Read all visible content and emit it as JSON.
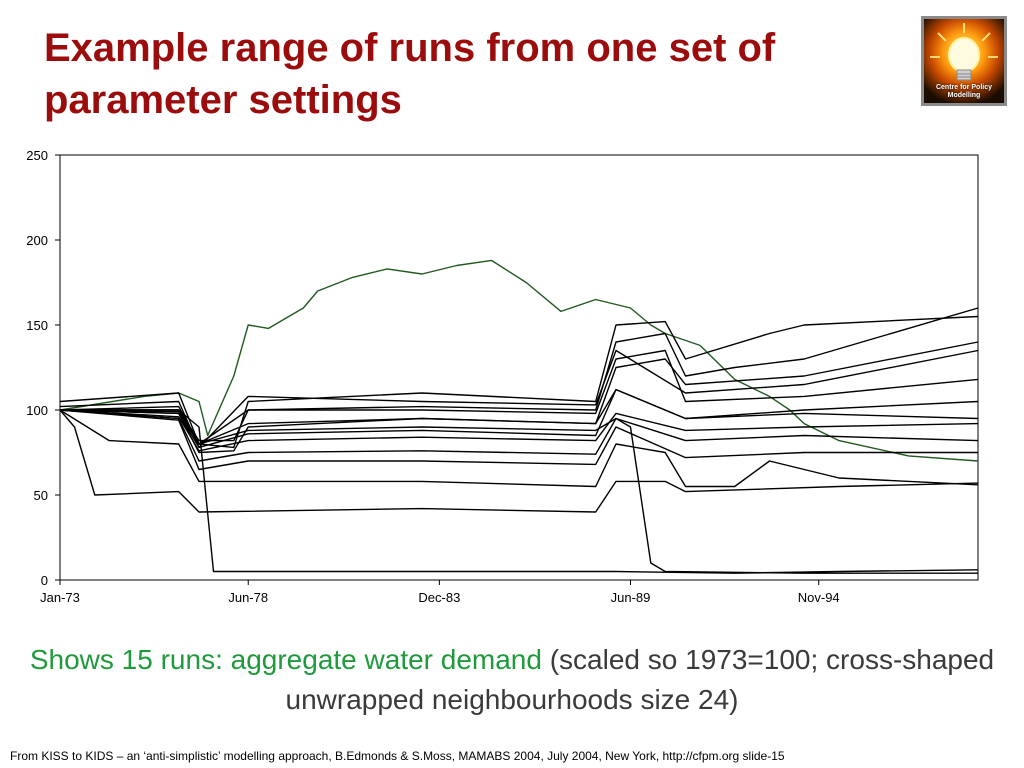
{
  "slide": {
    "title": "Example range of runs from one set of parameter settings",
    "logo_text": "Centre for Policy Modelling",
    "caption_highlight": "Shows 15 runs: aggregate water demand",
    "caption_rest": " (scaled so 1973=100; cross-shaped unwrapped neighbourhoods size 24)",
    "footer": "From KISS to KIDS – an ‘anti-simplistic’ modelling approach, B.Edmonds & S.Moss, MAMABS 2004, July 2004, New York, http://cfpm.org slide-15"
  },
  "colors": {
    "title": "#9b0d0d",
    "caption_highlight": "#1f9a3c",
    "black_series": "#000000",
    "green_series": "#1f5a1f"
  },
  "chart_data": {
    "type": "line",
    "title": "",
    "xlabel": "",
    "ylabel": "",
    "ylim": [
      0,
      250
    ],
    "yticks": [
      0,
      50,
      100,
      150,
      200,
      250
    ],
    "xlim": [
      "1973-01",
      "1999-06"
    ],
    "xticks": [
      "Jan-73",
      "Jun-78",
      "Dec-83",
      "Jun-89",
      "Nov-94"
    ],
    "grid": false,
    "legend": "none",
    "series": [
      {
        "color": "#1f5a1f",
        "points": [
          [
            "1973-01",
            100
          ],
          [
            "1975-06",
            108
          ],
          [
            "1976-06",
            110
          ],
          [
            "1977-01",
            105
          ],
          [
            "1977-04",
            85
          ],
          [
            "1978-01",
            120
          ],
          [
            "1978-06",
            150
          ],
          [
            "1979-01",
            148
          ],
          [
            "1980-01",
            160
          ],
          [
            "1980-06",
            170
          ],
          [
            "1981-06",
            178
          ],
          [
            "1982-06",
            183
          ],
          [
            "1983-06",
            180
          ],
          [
            "1984-06",
            185
          ],
          [
            "1985-06",
            188
          ],
          [
            "1986-06",
            175
          ],
          [
            "1987-06",
            158
          ],
          [
            "1988-06",
            165
          ],
          [
            "1989-06",
            160
          ],
          [
            "1990-01",
            150
          ],
          [
            "1990-06",
            145
          ],
          [
            "1991-06",
            138
          ],
          [
            "1992-06",
            118
          ],
          [
            "1993-06",
            108
          ],
          [
            "1994-01",
            100
          ],
          [
            "1994-06",
            92
          ],
          [
            "1995-06",
            82
          ],
          [
            "1997-06",
            73
          ],
          [
            "1999-06",
            70
          ]
        ]
      },
      {
        "color": "#000000",
        "points": [
          [
            "1973-01",
            100
          ],
          [
            "1976-06",
            100
          ],
          [
            "1977-01",
            82
          ],
          [
            "1978-01",
            82
          ],
          [
            "1978-06",
            100
          ],
          [
            "1983-06",
            102
          ],
          [
            "1988-06",
            100
          ],
          [
            "1989-01",
            140
          ],
          [
            "1990-06",
            145
          ],
          [
            "1991-01",
            120
          ],
          [
            "1992-06",
            125
          ],
          [
            "1994-06",
            130
          ],
          [
            "1999-06",
            160
          ]
        ]
      },
      {
        "color": "#000000",
        "points": [
          [
            "1973-01",
            105
          ],
          [
            "1976-06",
            110
          ],
          [
            "1977-01",
            80
          ],
          [
            "1978-01",
            78
          ],
          [
            "1978-06",
            105
          ],
          [
            "1983-06",
            110
          ],
          [
            "1988-06",
            105
          ],
          [
            "1989-01",
            150
          ],
          [
            "1990-06",
            152
          ],
          [
            "1991-01",
            130
          ],
          [
            "1993-06",
            145
          ],
          [
            "1994-06",
            150
          ],
          [
            "1999-06",
            155
          ]
        ]
      },
      {
        "color": "#000000",
        "points": [
          [
            "1973-01",
            100
          ],
          [
            "1976-06",
            98
          ],
          [
            "1977-01",
            75
          ],
          [
            "1978-01",
            76
          ],
          [
            "1978-06",
            90
          ],
          [
            "1983-06",
            95
          ],
          [
            "1988-06",
            92
          ],
          [
            "1989-01",
            125
          ],
          [
            "1990-06",
            130
          ],
          [
            "1991-01",
            115
          ],
          [
            "1994-06",
            120
          ],
          [
            "1999-06",
            140
          ]
        ]
      },
      {
        "color": "#000000",
        "points": [
          [
            "1973-01",
            102
          ],
          [
            "1976-06",
            105
          ],
          [
            "1977-01",
            78
          ],
          [
            "1978-06",
            108
          ],
          [
            "1983-06",
            105
          ],
          [
            "1988-06",
            103
          ],
          [
            "1989-01",
            135
          ],
          [
            "1991-01",
            110
          ],
          [
            "1994-06",
            115
          ],
          [
            "1999-06",
            135
          ]
        ]
      },
      {
        "color": "#000000",
        "points": [
          [
            "1973-01",
            100
          ],
          [
            "1976-06",
            102
          ],
          [
            "1977-01",
            80
          ],
          [
            "1978-06",
            100
          ],
          [
            "1983-06",
            100
          ],
          [
            "1988-06",
            98
          ],
          [
            "1989-01",
            130
          ],
          [
            "1990-06",
            135
          ],
          [
            "1991-01",
            105
          ],
          [
            "1994-06",
            108
          ],
          [
            "1999-06",
            118
          ]
        ]
      },
      {
        "color": "#000000",
        "points": [
          [
            "1973-01",
            100
          ],
          [
            "1976-06",
            100
          ],
          [
            "1977-01",
            80
          ],
          [
            "1978-06",
            92
          ],
          [
            "1983-06",
            95
          ],
          [
            "1988-06",
            92
          ],
          [
            "1989-01",
            112
          ],
          [
            "1991-01",
            95
          ],
          [
            "1994-06",
            100
          ],
          [
            "1999-06",
            105
          ]
        ]
      },
      {
        "color": "#000000",
        "points": [
          [
            "1973-01",
            100
          ],
          [
            "1976-06",
            98
          ],
          [
            "1977-01",
            78
          ],
          [
            "1978-06",
            86
          ],
          [
            "1983-06",
            88
          ],
          [
            "1988-06",
            85
          ],
          [
            "1989-01",
            112
          ],
          [
            "1991-01",
            95
          ],
          [
            "1994-06",
            98
          ],
          [
            "1999-06",
            95
          ]
        ]
      },
      {
        "color": "#000000",
        "points": [
          [
            "1973-01",
            100
          ],
          [
            "1976-06",
            96
          ],
          [
            "1977-01",
            76
          ],
          [
            "1978-06",
            82
          ],
          [
            "1983-06",
            84
          ],
          [
            "1988-06",
            82
          ],
          [
            "1989-01",
            98
          ],
          [
            "1991-01",
            88
          ],
          [
            "1994-06",
            90
          ],
          [
            "1999-06",
            92
          ]
        ]
      },
      {
        "color": "#000000",
        "points": [
          [
            "1973-01",
            100
          ],
          [
            "1976-06",
            95
          ],
          [
            "1977-01",
            70
          ],
          [
            "1978-06",
            75
          ],
          [
            "1983-06",
            76
          ],
          [
            "1988-06",
            74
          ],
          [
            "1989-01",
            95
          ],
          [
            "1991-01",
            82
          ],
          [
            "1994-06",
            85
          ],
          [
            "1999-06",
            82
          ]
        ]
      },
      {
        "color": "#000000",
        "points": [
          [
            "1973-01",
            100
          ],
          [
            "1976-06",
            94
          ],
          [
            "1977-01",
            65
          ],
          [
            "1978-06",
            70
          ],
          [
            "1983-06",
            70
          ],
          [
            "1988-06",
            68
          ],
          [
            "1989-01",
            90
          ],
          [
            "1991-01",
            72
          ],
          [
            "1994-06",
            75
          ],
          [
            "1999-06",
            75
          ]
        ]
      },
      {
        "color": "#000000",
        "points": [
          [
            "1973-01",
            100
          ],
          [
            "1974-06",
            82
          ],
          [
            "1976-06",
            80
          ],
          [
            "1977-01",
            58
          ],
          [
            "1983-06",
            58
          ],
          [
            "1988-06",
            55
          ],
          [
            "1989-01",
            80
          ],
          [
            "1990-06",
            75
          ],
          [
            "1991-01",
            55
          ],
          [
            "1992-06",
            55
          ],
          [
            "1993-06",
            70
          ],
          [
            "1995-06",
            60
          ],
          [
            "1999-06",
            56
          ]
        ]
      },
      {
        "color": "#000000",
        "points": [
          [
            "1973-01",
            100
          ],
          [
            "1973-06",
            90
          ],
          [
            "1974-01",
            50
          ],
          [
            "1976-06",
            52
          ],
          [
            "1977-01",
            40
          ],
          [
            "1983-06",
            42
          ],
          [
            "1988-06",
            40
          ],
          [
            "1989-01",
            58
          ],
          [
            "1990-06",
            58
          ],
          [
            "1991-01",
            52
          ],
          [
            "1995-06",
            55
          ],
          [
            "1999-06",
            57
          ]
        ]
      },
      {
        "color": "#000000",
        "points": [
          [
            "1973-01",
            100
          ],
          [
            "1976-06",
            100
          ],
          [
            "1977-01",
            90
          ],
          [
            "1977-06",
            5
          ],
          [
            "1983-06",
            5
          ],
          [
            "1988-06",
            5
          ],
          [
            "1989-01",
            5
          ],
          [
            "1992-06",
            4
          ],
          [
            "1995-06",
            5
          ],
          [
            "1999-06",
            6
          ]
        ]
      },
      {
        "color": "#000000",
        "points": [
          [
            "1973-01",
            100
          ],
          [
            "1976-06",
            99
          ],
          [
            "1977-01",
            80
          ],
          [
            "1978-06",
            88
          ],
          [
            "1983-06",
            90
          ],
          [
            "1988-06",
            88
          ],
          [
            "1989-01",
            95
          ],
          [
            "1989-06",
            90
          ],
          [
            "1990-01",
            10
          ],
          [
            "1990-06",
            5
          ],
          [
            "1994-06",
            4
          ],
          [
            "1999-06",
            4
          ]
        ]
      }
    ]
  }
}
